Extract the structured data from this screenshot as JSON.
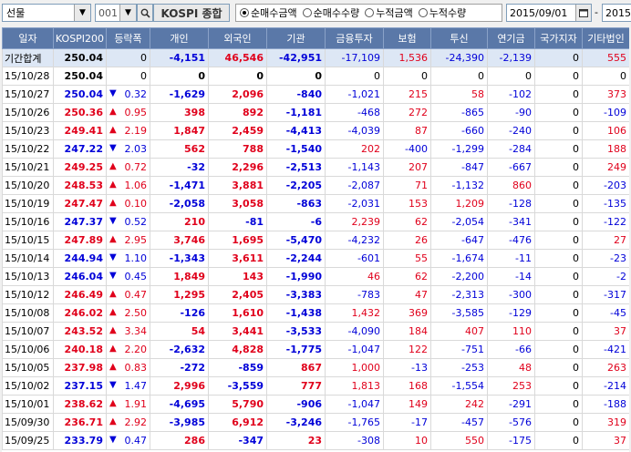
{
  "toolbar": {
    "market_select": "선물",
    "code": "001",
    "index_name": "KOSPI 종합",
    "radios": [
      {
        "label": "순매수금액",
        "checked": true
      },
      {
        "label": "순매수수량",
        "checked": false
      },
      {
        "label": "누적금액",
        "checked": false
      },
      {
        "label": "누적수량",
        "checked": false
      }
    ],
    "start_date": "2015/09/01",
    "separator": "-",
    "end_date": "2015/"
  },
  "icons": {
    "dropdown": "chevron-down-icon",
    "search": "search-icon",
    "calendar": "calendar-icon",
    "arrow_up": "▲",
    "arrow_down": "▼"
  },
  "colors": {
    "header_bg": "#5a78a8",
    "sum_row_bg": "#dde7f5",
    "positive": "#e0001b",
    "negative": "#0000d8"
  },
  "table": {
    "headers": [
      "일자",
      "KOSPI200",
      "등락폭",
      "개인",
      "외국인",
      "기관",
      "금융투자",
      "보험",
      "투신",
      "연기금",
      "국가지자",
      "기타법인"
    ],
    "rows": [
      {
        "date": "기간합계",
        "kospi": "250.04",
        "kdir": "",
        "change": "0",
        "cdir": "",
        "ind": "-4,151",
        "for": "46,546",
        "inst": "-42,951",
        "fin": "-17,109",
        "ins": "1,536",
        "trust": "-24,390",
        "pension": "-2,139",
        "gov": "0",
        "etc": "555",
        "sum": true
      },
      {
        "date": "15/10/28",
        "kospi": "250.04",
        "kdir": "",
        "change": "0",
        "cdir": "",
        "ind": "0",
        "for": "0",
        "inst": "0",
        "fin": "0",
        "ins": "0",
        "trust": "0",
        "pension": "0",
        "gov": "0",
        "etc": "0"
      },
      {
        "date": "15/10/27",
        "kospi": "250.04",
        "kdir": "down",
        "change": "0.32",
        "cdir": "down",
        "ind": "-1,629",
        "for": "2,096",
        "inst": "-840",
        "fin": "-1,021",
        "ins": "215",
        "trust": "58",
        "pension": "-102",
        "gov": "0",
        "etc": "373"
      },
      {
        "date": "15/10/26",
        "kospi": "250.36",
        "kdir": "up",
        "change": "0.95",
        "cdir": "up",
        "ind": "398",
        "for": "892",
        "inst": "-1,181",
        "fin": "-468",
        "ins": "272",
        "trust": "-865",
        "pension": "-90",
        "gov": "0",
        "etc": "-109"
      },
      {
        "date": "15/10/23",
        "kospi": "249.41",
        "kdir": "up",
        "change": "2.19",
        "cdir": "up",
        "ind": "1,847",
        "for": "2,459",
        "inst": "-4,413",
        "fin": "-4,039",
        "ins": "87",
        "trust": "-660",
        "pension": "-240",
        "gov": "0",
        "etc": "106"
      },
      {
        "date": "15/10/22",
        "kospi": "247.22",
        "kdir": "down",
        "change": "2.03",
        "cdir": "down",
        "ind": "562",
        "for": "788",
        "inst": "-1,540",
        "fin": "202",
        "ins": "-400",
        "trust": "-1,299",
        "pension": "-284",
        "gov": "0",
        "etc": "188"
      },
      {
        "date": "15/10/21",
        "kospi": "249.25",
        "kdir": "up",
        "change": "0.72",
        "cdir": "up",
        "ind": "-32",
        "for": "2,296",
        "inst": "-2,513",
        "fin": "-1,143",
        "ins": "207",
        "trust": "-847",
        "pension": "-667",
        "gov": "0",
        "etc": "249"
      },
      {
        "date": "15/10/20",
        "kospi": "248.53",
        "kdir": "up",
        "change": "1.06",
        "cdir": "up",
        "ind": "-1,471",
        "for": "3,881",
        "inst": "-2,205",
        "fin": "-2,087",
        "ins": "71",
        "trust": "-1,132",
        "pension": "860",
        "gov": "0",
        "etc": "-203"
      },
      {
        "date": "15/10/19",
        "kospi": "247.47",
        "kdir": "up",
        "change": "0.10",
        "cdir": "up",
        "ind": "-2,058",
        "for": "3,058",
        "inst": "-863",
        "fin": "-2,031",
        "ins": "153",
        "trust": "1,209",
        "pension": "-128",
        "gov": "0",
        "etc": "-135"
      },
      {
        "date": "15/10/16",
        "kospi": "247.37",
        "kdir": "down",
        "change": "0.52",
        "cdir": "down",
        "ind": "210",
        "for": "-81",
        "inst": "-6",
        "fin": "2,239",
        "ins": "62",
        "trust": "-2,054",
        "pension": "-341",
        "gov": "0",
        "etc": "-122"
      },
      {
        "date": "15/10/15",
        "kospi": "247.89",
        "kdir": "up",
        "change": "2.95",
        "cdir": "up",
        "ind": "3,746",
        "for": "1,695",
        "inst": "-5,470",
        "fin": "-4,232",
        "ins": "26",
        "trust": "-647",
        "pension": "-476",
        "gov": "0",
        "etc": "27"
      },
      {
        "date": "15/10/14",
        "kospi": "244.94",
        "kdir": "down",
        "change": "1.10",
        "cdir": "down",
        "ind": "-1,343",
        "for": "3,611",
        "inst": "-2,244",
        "fin": "-601",
        "ins": "55",
        "trust": "-1,674",
        "pension": "-11",
        "gov": "0",
        "etc": "-23"
      },
      {
        "date": "15/10/13",
        "kospi": "246.04",
        "kdir": "down",
        "change": "0.45",
        "cdir": "down",
        "ind": "1,849",
        "for": "143",
        "inst": "-1,990",
        "fin": "46",
        "ins": "62",
        "trust": "-2,200",
        "pension": "-14",
        "gov": "0",
        "etc": "-2"
      },
      {
        "date": "15/10/12",
        "kospi": "246.49",
        "kdir": "up",
        "change": "0.47",
        "cdir": "up",
        "ind": "1,295",
        "for": "2,405",
        "inst": "-3,383",
        "fin": "-783",
        "ins": "47",
        "trust": "-2,313",
        "pension": "-300",
        "gov": "0",
        "etc": "-317"
      },
      {
        "date": "15/10/08",
        "kospi": "246.02",
        "kdir": "up",
        "change": "2.50",
        "cdir": "up",
        "ind": "-126",
        "for": "1,610",
        "inst": "-1,438",
        "fin": "1,432",
        "ins": "369",
        "trust": "-3,585",
        "pension": "-129",
        "gov": "0",
        "etc": "-45"
      },
      {
        "date": "15/10/07",
        "kospi": "243.52",
        "kdir": "up",
        "change": "3.34",
        "cdir": "up",
        "ind": "54",
        "for": "3,441",
        "inst": "-3,533",
        "fin": "-4,090",
        "ins": "184",
        "trust": "407",
        "pension": "110",
        "gov": "0",
        "etc": "37"
      },
      {
        "date": "15/10/06",
        "kospi": "240.18",
        "kdir": "up",
        "change": "2.20",
        "cdir": "up",
        "ind": "-2,632",
        "for": "4,828",
        "inst": "-1,775",
        "fin": "-1,047",
        "ins": "122",
        "trust": "-751",
        "pension": "-66",
        "gov": "0",
        "etc": "-421"
      },
      {
        "date": "15/10/05",
        "kospi": "237.98",
        "kdir": "up",
        "change": "0.83",
        "cdir": "up",
        "ind": "-272",
        "for": "-859",
        "inst": "867",
        "fin": "1,000",
        "ins": "-13",
        "trust": "-253",
        "pension": "48",
        "gov": "0",
        "etc": "263"
      },
      {
        "date": "15/10/02",
        "kospi": "237.15",
        "kdir": "down",
        "change": "1.47",
        "cdir": "down",
        "ind": "2,996",
        "for": "-3,559",
        "inst": "777",
        "fin": "1,813",
        "ins": "168",
        "trust": "-1,554",
        "pension": "253",
        "gov": "0",
        "etc": "-214"
      },
      {
        "date": "15/10/01",
        "kospi": "238.62",
        "kdir": "up",
        "change": "1.91",
        "cdir": "up",
        "ind": "-4,695",
        "for": "5,790",
        "inst": "-906",
        "fin": "-1,047",
        "ins": "149",
        "trust": "242",
        "pension": "-291",
        "gov": "0",
        "etc": "-188"
      },
      {
        "date": "15/09/30",
        "kospi": "236.71",
        "kdir": "up",
        "change": "2.92",
        "cdir": "up",
        "ind": "-3,985",
        "for": "6,912",
        "inst": "-3,246",
        "fin": "-1,765",
        "ins": "-17",
        "trust": "-457",
        "pension": "-576",
        "gov": "0",
        "etc": "319"
      },
      {
        "date": "15/09/25",
        "kospi": "233.79",
        "kdir": "down",
        "change": "0.47",
        "cdir": "down",
        "ind": "286",
        "for": "-347",
        "inst": "23",
        "fin": "-308",
        "ins": "10",
        "trust": "550",
        "pension": "-175",
        "gov": "0",
        "etc": "37"
      }
    ]
  }
}
